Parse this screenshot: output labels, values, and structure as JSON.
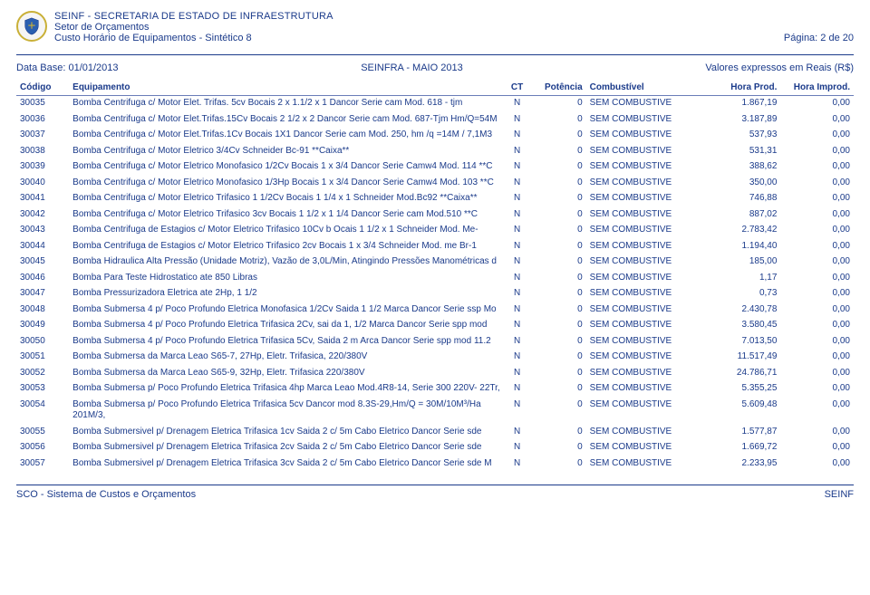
{
  "header": {
    "org": "SEINF - SECRETARIA DE ESTADO DE INFRAESTRUTURA",
    "dept": "Setor de Orçamentos",
    "title": "Custo Horário de Equipamentos - Sintético 8",
    "page": "Página: 2 de 20"
  },
  "meta": {
    "database_label": "Data Base: 01/01/2013",
    "center": "SEINFRA - MAIO 2013",
    "right": "Valores expressos em Reais (R$)"
  },
  "columns": {
    "codigo": "Código",
    "equip": "Equipamento",
    "ct": "CT",
    "pot": "Potência",
    "comb": "Combustível",
    "hprod": "Hora Prod.",
    "himprod": "Hora Improd."
  },
  "rows": [
    {
      "codigo": "30035",
      "equip": "Bomba Centrifuga c/ Motor Elet. Trifas. 5cv Bocais 2 x 1.1/2 x 1 Dancor Serie cam Mod. 618 - tjm",
      "ct": "N",
      "pot": "0",
      "comb": "SEM COMBUSTIVE",
      "hprod": "1.867,19",
      "himprod": "0,00"
    },
    {
      "codigo": "30036",
      "equip": "Bomba Centrifuga c/ Motor Elet.Trifas.15Cv Bocais 2 1/2 x 2 Dancor Serie cam Mod. 687-Tjm Hm/Q=54M",
      "ct": "N",
      "pot": "0",
      "comb": "SEM COMBUSTIVE",
      "hprod": "3.187,89",
      "himprod": "0,00"
    },
    {
      "codigo": "30037",
      "equip": "Bomba Centrifuga c/ Motor Elet.Trifas.1Cv Bocais 1X1 Dancor Serie cam Mod. 250, hm /q =14M / 7,1M3",
      "ct": "N",
      "pot": "0",
      "comb": "SEM COMBUSTIVE",
      "hprod": "537,93",
      "himprod": "0,00"
    },
    {
      "codigo": "30038",
      "equip": "Bomba Centrifuga c/ Motor Eletrico 3/4Cv Schneider Bc-91 **Caixa**",
      "ct": "N",
      "pot": "0",
      "comb": "SEM COMBUSTIVE",
      "hprod": "531,31",
      "himprod": "0,00"
    },
    {
      "codigo": "30039",
      "equip": "Bomba Centrifuga c/ Motor Eletrico Monofasico 1/2Cv Bocais 1 x 3/4 Dancor Serie Camw4 Mod. 114 **C",
      "ct": "N",
      "pot": "0",
      "comb": "SEM COMBUSTIVE",
      "hprod": "388,62",
      "himprod": "0,00"
    },
    {
      "codigo": "30040",
      "equip": "Bomba Centrifuga c/ Motor Eletrico Monofasico 1/3Hp Bocais 1 x 3/4 Dancor Serie Camw4 Mod. 103 **C",
      "ct": "N",
      "pot": "0",
      "comb": "SEM COMBUSTIVE",
      "hprod": "350,00",
      "himprod": "0,00"
    },
    {
      "codigo": "30041",
      "equip": "Bomba Centrifuga c/ Motor Eletrico Trifasico 1 1/2Cv Bocais 1 1/4 x 1 Schneider Mod.Bc92 **Caixa**",
      "ct": "N",
      "pot": "0",
      "comb": "SEM COMBUSTIVE",
      "hprod": "746,88",
      "himprod": "0,00"
    },
    {
      "codigo": "30042",
      "equip": "Bomba Centrifuga c/ Motor Eletrico Trifasico 3cv Bocais 1 1/2 x 1 1/4 Dancor Serie cam Mod.510 **C",
      "ct": "N",
      "pot": "0",
      "comb": "SEM COMBUSTIVE",
      "hprod": "887,02",
      "himprod": "0,00"
    },
    {
      "codigo": "30043",
      "equip": "Bomba Centrifuga de Estagios c/ Motor Eletrico Trifasico 10Cv b Ocais 1 1/2 x 1 Schneider Mod. Me-",
      "ct": "N",
      "pot": "0",
      "comb": "SEM COMBUSTIVE",
      "hprod": "2.783,42",
      "himprod": "0,00"
    },
    {
      "codigo": "30044",
      "equip": "Bomba Centrifuga de Estagios c/ Motor Eletrico Trifasico 2cv Bocais 1 x 3/4 Schneider Mod. me Br-1",
      "ct": "N",
      "pot": "0",
      "comb": "SEM COMBUSTIVE",
      "hprod": "1.194,40",
      "himprod": "0,00"
    },
    {
      "codigo": "30045",
      "equip": "Bomba Hidraulica Alta Pressão (Unidade Motriz), Vazão de 3,0L/Min, Atingindo Pressões Manométricas d",
      "ct": "N",
      "pot": "0",
      "comb": "SEM COMBUSTIVE",
      "hprod": "185,00",
      "himprod": "0,00"
    },
    {
      "codigo": "30046",
      "equip": "Bomba Para Teste Hidrostatico ate 850 Libras",
      "ct": "N",
      "pot": "0",
      "comb": "SEM COMBUSTIVE",
      "hprod": "1,17",
      "himprod": "0,00"
    },
    {
      "codigo": "30047",
      "equip": "Bomba Pressurizadora Eletrica ate 2Hp, 1 1/2",
      "ct": "N",
      "pot": "0",
      "comb": "SEM COMBUSTIVE",
      "hprod": "0,73",
      "himprod": "0,00"
    },
    {
      "codigo": "30048",
      "equip": "Bomba Submersa 4 p/ Poco Profundo Eletrica Monofasica 1/2Cv Saida 1 1/2 Marca Dancor Serie ssp Mo",
      "ct": "N",
      "pot": "0",
      "comb": "SEM COMBUSTIVE",
      "hprod": "2.430,78",
      "himprod": "0,00"
    },
    {
      "codigo": "30049",
      "equip": "Bomba Submersa 4 p/ Poco Profundo Eletrica Trifasica 2Cv, sai da 1, 1/2 Marca Dancor Serie spp mod",
      "ct": "N",
      "pot": "0",
      "comb": "SEM COMBUSTIVE",
      "hprod": "3.580,45",
      "himprod": "0,00"
    },
    {
      "codigo": "30050",
      "equip": "Bomba Submersa 4 p/ Poco Profundo Eletrica Trifasica 5Cv, Saida 2 m Arca Dancor Serie spp mod 11.2",
      "ct": "N",
      "pot": "0",
      "comb": "SEM COMBUSTIVE",
      "hprod": "7.013,50",
      "himprod": "0,00"
    },
    {
      "codigo": "30051",
      "equip": "Bomba Submersa da Marca Leao S65-7, 27Hp, Eletr. Trifasica, 220/380V",
      "ct": "N",
      "pot": "0",
      "comb": "SEM COMBUSTIVE",
      "hprod": "11.517,49",
      "himprod": "0,00"
    },
    {
      "codigo": "30052",
      "equip": "Bomba Submersa da Marca Leao S65-9, 32Hp, Eletr. Trifasica 220/380V",
      "ct": "N",
      "pot": "0",
      "comb": "SEM COMBUSTIVE",
      "hprod": "24.786,71",
      "himprod": "0,00"
    },
    {
      "codigo": "30053",
      "equip": "Bomba Submersa p/ Poco Profundo Eletrica Trifasica 4hp Marca Leao Mod.4R8-14, Serie 300 220V- 22Tr,",
      "ct": "N",
      "pot": "0",
      "comb": "SEM COMBUSTIVE",
      "hprod": "5.355,25",
      "himprod": "0,00"
    },
    {
      "codigo": "30054",
      "equip": "Bomba Submersa p/ Poco Profundo Eletrica Trifasica 5cv Dancor mod 8.3S-29,Hm/Q = 30M/10M³/Ha 201M/3,",
      "ct": "N",
      "pot": "0",
      "comb": "SEM COMBUSTIVE",
      "hprod": "5.609,48",
      "himprod": "0,00"
    },
    {
      "codigo": "30055",
      "equip": "Bomba Submersivel p/ Drenagem Eletrica Trifasica 1cv Saida 2 c/ 5m Cabo Eletrico Dancor Serie sde",
      "ct": "N",
      "pot": "0",
      "comb": "SEM COMBUSTIVE",
      "hprod": "1.577,87",
      "himprod": "0,00"
    },
    {
      "codigo": "30056",
      "equip": "Bomba Submersivel p/ Drenagem Eletrica Trifasica 2cv Saida 2 c/ 5m Cabo Eletrico Dancor Serie sde",
      "ct": "N",
      "pot": "0",
      "comb": "SEM COMBUSTIVE",
      "hprod": "1.669,72",
      "himprod": "0,00"
    },
    {
      "codigo": "30057",
      "equip": "Bomba Submersivel p/ Drenagem Eletrica Trifasica 3cv Saida 2 c/ 5m Cabo Eletrico Dancor Serie sde M",
      "ct": "N",
      "pot": "0",
      "comb": "SEM COMBUSTIVE",
      "hprod": "2.233,95",
      "himprod": "0,00"
    }
  ],
  "footer": {
    "left": "SCO - Sistema de Custos e Orçamentos",
    "right": "SEINF"
  },
  "colors": {
    "text": "#1a3a8a",
    "rule": "#1a3a8a",
    "row_rule": "#6a7db8",
    "logo_ring": "#c9b037"
  }
}
